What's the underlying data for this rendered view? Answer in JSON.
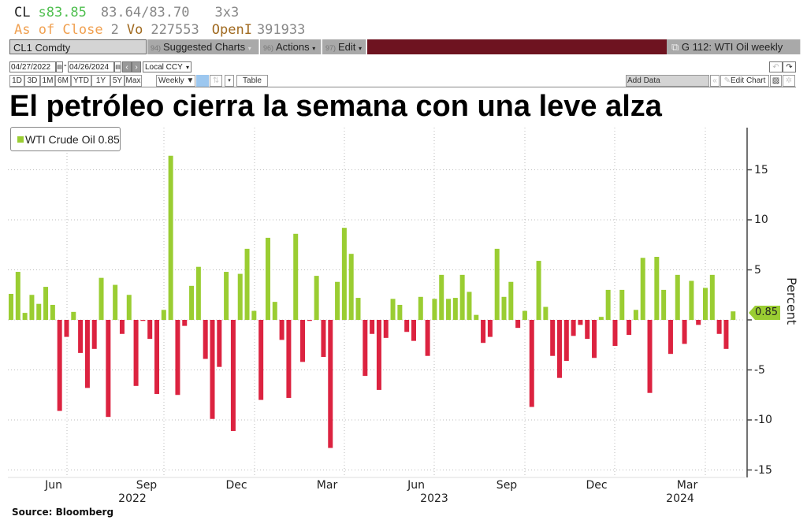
{
  "quote": {
    "ticker": "CL",
    "last": "s83.85",
    "bid_ask": "83.64/83.70",
    "size": "3x3",
    "as_of": "As of Close",
    "as_of_num": "2",
    "vol_label": "Vo",
    "volume": "227553",
    "oi_label": "OpenI",
    "open_interest": "391933"
  },
  "toolbar": {
    "security": "CL1 Comdty",
    "suggested_num": "94)",
    "suggested": "Suggested Charts",
    "actions_num": "96)",
    "actions": "Actions",
    "edit_num": "97)",
    "edit": "Edit",
    "chart_name": "G 112: WTI Oil weekly",
    "start_date": "04/27/2022",
    "end_date": "04/26/2024",
    "currency": "Local CCY",
    "periods": [
      "1D",
      "3D",
      "1M",
      "6M",
      "YTD",
      "1Y",
      "5Y",
      "Max"
    ],
    "frequency": "Weekly ▼",
    "table": "Table",
    "add_data": "Add Data",
    "edit_chart": "Edit Chart",
    "undo": "↶",
    "redo": "↷",
    "collapse": "«"
  },
  "colors": {
    "positive": "#9acd32",
    "negative": "#dc2340",
    "brand_bar": "#6e1320"
  },
  "chart_data": {
    "type": "bar",
    "title": "El petróleo cierra la semana con una leve alza",
    "legend": "WTI Crude Oil 0.85",
    "legend_placement": "top-left",
    "ylabel": "Percent",
    "ylim": [
      -16,
      19
    ],
    "yticks": [
      "15",
      "10",
      "5",
      "0",
      "-5",
      "-10",
      "-15"
    ],
    "ytick_values": [
      15,
      10,
      5,
      0,
      -5,
      -10,
      -15
    ],
    "last_value_tag": "0.85",
    "xticks": [
      "Jun",
      "Sep",
      "Dec",
      "Mar",
      "Jun",
      "Sep",
      "Dec",
      "Mar"
    ],
    "years": [
      "2022",
      "2023",
      "2024"
    ],
    "x_range": [
      "04/27/2022",
      "04/26/2024"
    ],
    "frequency": "weekly",
    "grid": true,
    "source": "Source: Bloomberg",
    "values": [
      2.6,
      4.8,
      0.7,
      2.5,
      1.6,
      3.3,
      1.5,
      -9.1,
      -1.7,
      0.8,
      -3.3,
      -6.8,
      -2.9,
      4.2,
      -9.7,
      3.5,
      -1.4,
      2.5,
      -6.6,
      -0.1,
      -1.9,
      -7.4,
      1.0,
      16.4,
      -7.5,
      -0.6,
      3.4,
      5.3,
      -3.9,
      -9.9,
      -4.7,
      4.8,
      -11.1,
      4.6,
      7.1,
      0.9,
      -8.0,
      8.2,
      1.8,
      -2.0,
      -7.8,
      8.6,
      -4.2,
      -0.1,
      4.4,
      -3.7,
      -12.8,
      3.8,
      9.2,
      6.6,
      2.2,
      -5.6,
      -1.4,
      -7.0,
      -1.8,
      2.1,
      1.5,
      -1.2,
      -2.1,
      2.3,
      -3.6,
      2.1,
      4.5,
      2.1,
      2.2,
      4.5,
      2.8,
      0.5,
      -2.3,
      -1.7,
      7.1,
      2.3,
      3.8,
      -0.8,
      0.9,
      -8.7,
      5.9,
      1.3,
      -3.6,
      -5.8,
      -4.1,
      -1.6,
      -0.5,
      -1.9,
      -3.8,
      0.3,
      3.0,
      -2.6,
      3.0,
      -1.5,
      1.0,
      6.2,
      -7.3,
      6.3,
      3.0,
      -3.4,
      4.5,
      -2.4,
      3.9,
      -0.5,
      3.2,
      4.5,
      -1.4,
      -2.9,
      0.85
    ]
  }
}
